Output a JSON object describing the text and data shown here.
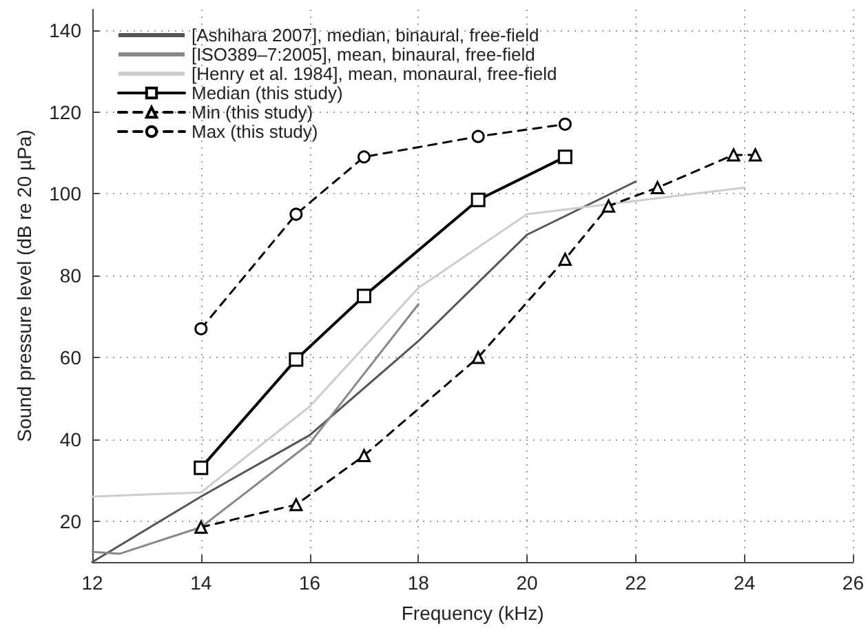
{
  "chart_data": {
    "type": "line",
    "xlabel": "Frequency (kHz)",
    "ylabel": "Sound pressure level (dB re 20 µPa)",
    "xlim": [
      12,
      26
    ],
    "xticks": [
      12,
      14,
      16,
      18,
      20,
      22,
      24,
      26
    ],
    "ylim": [
      10,
      145
    ],
    "yticks": [
      20,
      40,
      60,
      80,
      100,
      120,
      140
    ],
    "grid": true,
    "legend": "top left",
    "series": [
      {
        "name": "[Ashihara 2007], median, binaural, free-field",
        "color": "#555555",
        "marker": "none",
        "line_style": "solid",
        "x": [
          12,
          14,
          16,
          18,
          20,
          22
        ],
        "values": [
          10,
          26,
          41,
          64,
          90,
          103
        ]
      },
      {
        "name": "[ISO389–7:2005], mean, binaural, free-field",
        "color": "#888888",
        "marker": "none",
        "line_style": "solid",
        "x": [
          12,
          12.5,
          14,
          16,
          18
        ],
        "values": [
          12.5,
          12,
          18.5,
          39,
          73
        ]
      },
      {
        "name": "[Henry et al. 1984], mean, monaural, free-field",
        "color": "#cccccc",
        "marker": "none",
        "line_style": "solid",
        "x": [
          12,
          14,
          16,
          18,
          20,
          24
        ],
        "values": [
          26,
          27,
          48,
          77,
          95,
          101.5
        ]
      },
      {
        "name": "Median (this study)",
        "color": "#000000",
        "marker": "square",
        "line_style": "solid",
        "x": [
          14,
          15.75,
          17,
          19.1,
          20.7
        ],
        "values": [
          33,
          59.5,
          75,
          98.5,
          109
        ]
      },
      {
        "name": "Min (this study)",
        "color": "#000000",
        "marker": "triangle",
        "line_style": "dashed",
        "x": [
          14,
          15.75,
          17,
          19.1,
          20.7,
          21.5,
          22.4,
          23.8,
          24.2
        ],
        "values": [
          18.5,
          24,
          36,
          60,
          84,
          97,
          101.5,
          109.5,
          109.5
        ]
      },
      {
        "name": "Max (this study)",
        "color": "#000000",
        "marker": "circle",
        "line_style": "dashed",
        "x": [
          14,
          15.75,
          17,
          19.1,
          20.7
        ],
        "values": [
          67,
          95,
          109,
          114,
          117
        ]
      }
    ]
  }
}
